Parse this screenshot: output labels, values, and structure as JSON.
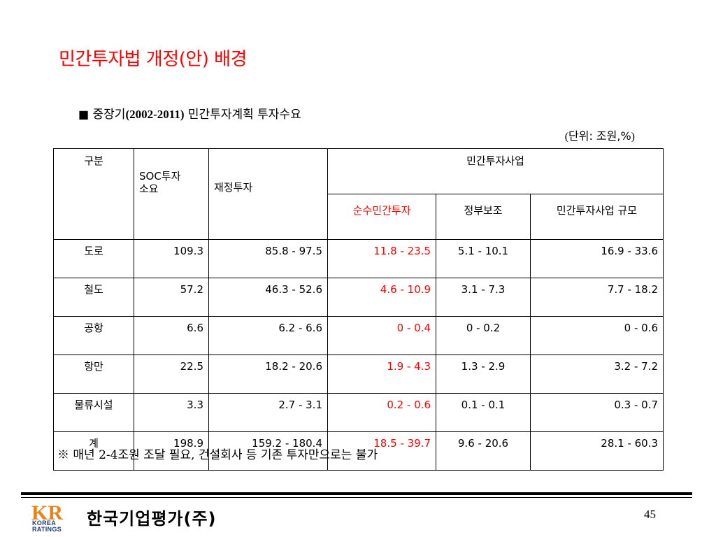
{
  "slide": {
    "title": "민간투자법 개정(안) 배경"
  },
  "caption": {
    "marker": "■",
    "prefix": "중장기",
    "years": "(2002-2011)",
    "suffix": "민간투자계획 투자수요"
  },
  "unit_note": {
    "open": "(",
    "text": "단위: 조원,%",
    "close": ")"
  },
  "table": {
    "header": {
      "category": "구분",
      "soc": "SOC투자\n소요",
      "fiscal": "재정투자",
      "private_group": "민간투자사업",
      "pure_private": "순수민간투자",
      "gov_subsidy": "정부보조",
      "private_scale": "민간투자사업 규모"
    },
    "rows": [
      {
        "category": "도로",
        "soc": "109.3",
        "fiscal": "85.8 - 97.5",
        "pure_private": "11.8 - 23.5",
        "gov_subsidy": "5.1 - 10.1",
        "private_scale": "16.9 - 33.6"
      },
      {
        "category": "철도",
        "soc": "57.2",
        "fiscal": "46.3 - 52.6",
        "pure_private": "4.6 - 10.9",
        "gov_subsidy": "3.1 - 7.3",
        "private_scale": "7.7 - 18.2"
      },
      {
        "category": "공항",
        "soc": "6.6",
        "fiscal": "6.2 - 6.6",
        "pure_private": "0 - 0.4",
        "gov_subsidy": "0 - 0.2",
        "private_scale": "0 - 0.6"
      },
      {
        "category": "항만",
        "soc": "22.5",
        "fiscal": "18.2 - 20.6",
        "pure_private": "1.9 - 4.3",
        "gov_subsidy": "1.3 - 2.9",
        "private_scale": "3.2 - 7.2"
      },
      {
        "category": "물류시설",
        "soc": "3.3",
        "fiscal": "2.7 - 3.1",
        "pure_private": "0.2 - 0.6",
        "gov_subsidy": "0.1 - 0.1",
        "private_scale": "0.3 - 0.7"
      },
      {
        "category": "계",
        "soc": "198.9",
        "fiscal": "159.2 - 180.4",
        "pure_private": "18.5 - 39.7",
        "gov_subsidy": "9.6 - 20.6",
        "private_scale": "28.1 - 60.3"
      }
    ]
  },
  "footnote": "※  매년 2-4조원 조달 필요,  건설회사 등 기존 투자만으로는 불가",
  "footer": {
    "logo_letters": "KR",
    "logo_sub_line1": "KOREA",
    "logo_sub_line2": "RATINGS",
    "company_name": "한국기업평가(주)",
    "page_number": "45"
  },
  "colors": {
    "accent_red": "#ff0000",
    "logo_orange": "#e8841e",
    "logo_navy": "#1c3b7a"
  }
}
